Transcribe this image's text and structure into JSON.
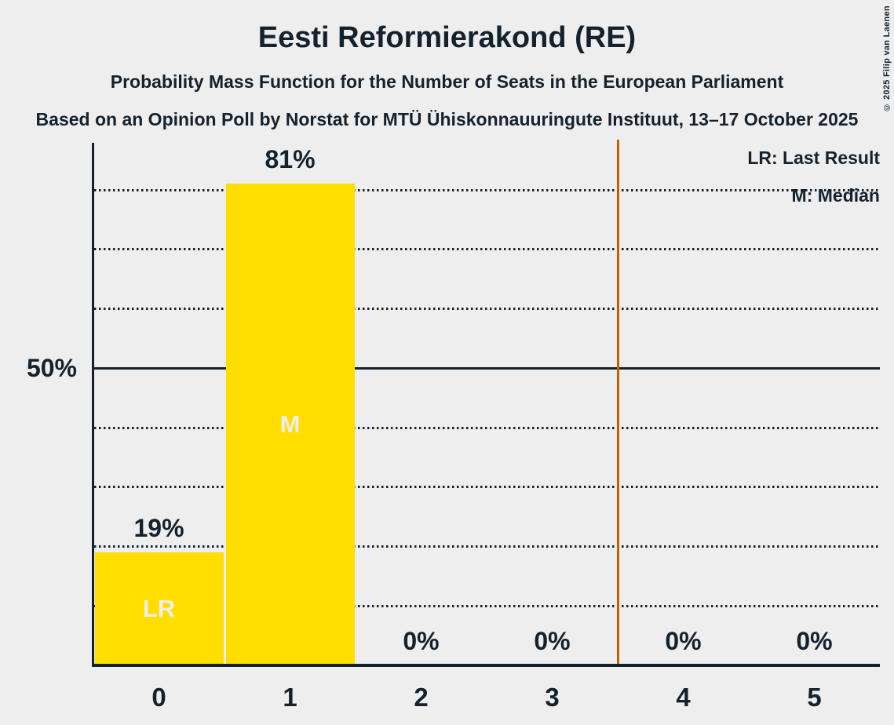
{
  "page": {
    "copyright": "© 2025 Filip van Laenen"
  },
  "header": {
    "title": "Eesti Reformierakond (RE)",
    "subtitle": "Probability Mass Function for the Number of Seats in the European Parliament",
    "source_line": "Based on an Opinion Poll by Norstat for MTÜ Ühiskonnauuringute Instituut, 13–17 October 2025"
  },
  "legend": {
    "last_result": "LR: Last Result",
    "median": "M: Median"
  },
  "chart_data": {
    "type": "bar",
    "title": "Eesti Reformierakond (RE)",
    "categories": [
      "0",
      "1",
      "2",
      "3",
      "4",
      "5"
    ],
    "values": [
      19,
      81,
      0,
      0,
      0,
      0
    ],
    "value_labels": [
      "19%",
      "81%",
      "0%",
      "0%",
      "0%",
      "0%"
    ],
    "bar_annotations": [
      "LR",
      "M",
      "",
      "",
      "",
      ""
    ],
    "y_axis": {
      "tick_label": "50%",
      "tick_pct": 50,
      "gridlines_pct": [
        10,
        20,
        30,
        40,
        50,
        60,
        70,
        80
      ],
      "solid_pct": 50,
      "ylim": [
        0,
        88
      ],
      "grid_style": "dotted"
    },
    "threshold_line_x": 3.5,
    "legend_entries": [
      "LR: Last Result",
      "M: Median"
    ],
    "legend_position": "top-right",
    "colors": {
      "bar": "#FFDE00",
      "threshold_line": "#D05A00",
      "ink": "#14222E",
      "background": "#EEEEEE",
      "bar_annotation": "#EEEEEE"
    }
  }
}
